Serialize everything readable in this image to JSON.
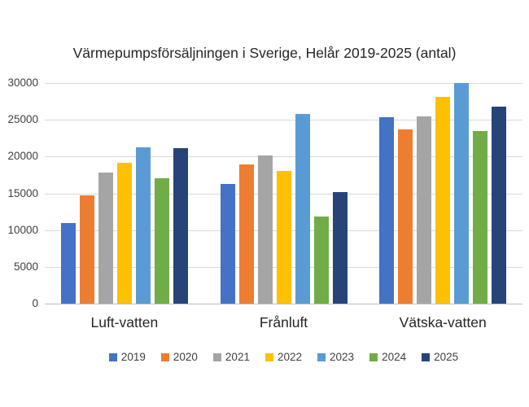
{
  "chart_data": {
    "type": "bar",
    "title": "Värmepumpsförsäljningen i Sverige, Helår 2019-2025 (antal)",
    "categories": [
      "Luft-vatten",
      "Frånluft",
      "Vätska-vatten"
    ],
    "series": [
      {
        "name": "2019",
        "color": "#4472C4",
        "values": [
          11000,
          16300,
          25300
        ]
      },
      {
        "name": "2020",
        "color": "#ED7D31",
        "values": [
          14700,
          18900,
          23700
        ]
      },
      {
        "name": "2021",
        "color": "#A5A5A5",
        "values": [
          17800,
          20100,
          25500
        ]
      },
      {
        "name": "2022",
        "color": "#FFC000",
        "values": [
          19200,
          18000,
          28100
        ]
      },
      {
        "name": "2023",
        "color": "#5B9BD5",
        "values": [
          21300,
          25800,
          30000
        ]
      },
      {
        "name": "2024",
        "color": "#70AD47",
        "values": [
          17100,
          11800,
          23500
        ]
      },
      {
        "name": "2025",
        "color": "#264478",
        "values": [
          21200,
          15200,
          26800
        ]
      }
    ],
    "xlabel": "",
    "ylabel": "",
    "ylim": [
      0,
      30000
    ],
    "ytick_step": 5000,
    "ytick_labels": [
      "0",
      "5000",
      "10000",
      "15000",
      "20000",
      "25000",
      "30000"
    ],
    "grid": true,
    "legend_position": "bottom"
  },
  "colors": {
    "background": "#FFFFFF",
    "gridline": "#D9D9D9",
    "axis_line": "#BFBFBF",
    "title_text": "#262626",
    "label_text": "#404040"
  }
}
